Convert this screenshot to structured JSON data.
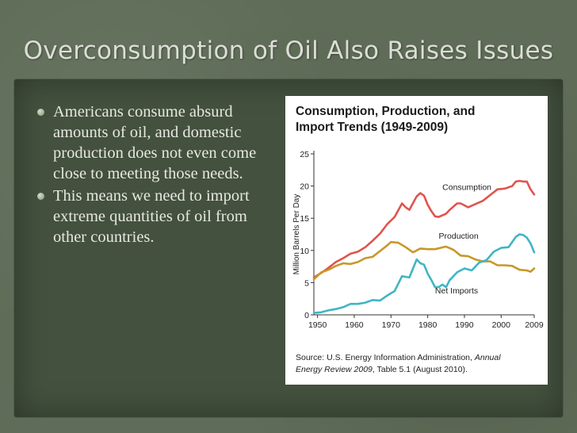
{
  "slide": {
    "title": "Overconsumption of Oil Also Raises Issues",
    "bullets": [
      "Americans consume absurd amounts of oil, and domestic production does not even come close to meeting those needs.",
      "This means we need to import extreme quantities of oil from other countries."
    ]
  },
  "chart_data": {
    "type": "line",
    "title": "Consumption, Production, and Import Trends (1949-2009)",
    "ylabel": "Million Barrels Per Day",
    "xlabel": "",
    "x_ticks": [
      "1950",
      "1960",
      "1970",
      "1980",
      "1990",
      "2000",
      "2009"
    ],
    "y_ticks": [
      "0",
      "5",
      "10",
      "15",
      "20",
      "25"
    ],
    "xlim": [
      1949,
      2009
    ],
    "ylim": [
      0,
      25
    ],
    "grid": false,
    "legend": "inline labels",
    "source": "Source: U.S. Energy Information Administration, Annual Energy Review 2009, Table 5.1 (August 2010).",
    "series": [
      {
        "name": "Consumption",
        "color": "#e0544e",
        "label_year": 1984,
        "label_value": 19.4,
        "points": [
          [
            1949,
            5.8
          ],
          [
            1951,
            6.5
          ],
          [
            1953,
            7.3
          ],
          [
            1955,
            8.2
          ],
          [
            1957,
            8.8
          ],
          [
            1959,
            9.5
          ],
          [
            1961,
            9.8
          ],
          [
            1963,
            10.5
          ],
          [
            1965,
            11.5
          ],
          [
            1967,
            12.6
          ],
          [
            1969,
            14.1
          ],
          [
            1971,
            15.2
          ],
          [
            1973,
            17.3
          ],
          [
            1974,
            16.7
          ],
          [
            1975,
            16.3
          ],
          [
            1977,
            18.4
          ],
          [
            1978,
            18.9
          ],
          [
            1979,
            18.5
          ],
          [
            1980,
            17.1
          ],
          [
            1981,
            16.1
          ],
          [
            1982,
            15.3
          ],
          [
            1983,
            15.2
          ],
          [
            1985,
            15.7
          ],
          [
            1986,
            16.3
          ],
          [
            1988,
            17.3
          ],
          [
            1989,
            17.3
          ],
          [
            1991,
            16.7
          ],
          [
            1993,
            17.2
          ],
          [
            1995,
            17.7
          ],
          [
            1997,
            18.6
          ],
          [
            1999,
            19.5
          ],
          [
            2001,
            19.6
          ],
          [
            2003,
            20.0
          ],
          [
            2004,
            20.7
          ],
          [
            2005,
            20.8
          ],
          [
            2006,
            20.7
          ],
          [
            2007,
            20.7
          ],
          [
            2008,
            19.5
          ],
          [
            2009,
            18.7
          ]
        ]
      },
      {
        "name": "Production",
        "color": "#c8972a",
        "label_year": 1983,
        "label_value": 11.8,
        "points": [
          [
            1949,
            5.5
          ],
          [
            1951,
            6.6
          ],
          [
            1953,
            7.0
          ],
          [
            1955,
            7.6
          ],
          [
            1957,
            8.0
          ],
          [
            1959,
            7.9
          ],
          [
            1961,
            8.2
          ],
          [
            1963,
            8.8
          ],
          [
            1965,
            9.0
          ],
          [
            1967,
            9.9
          ],
          [
            1969,
            10.8
          ],
          [
            1970,
            11.3
          ],
          [
            1972,
            11.2
          ],
          [
            1974,
            10.5
          ],
          [
            1976,
            9.7
          ],
          [
            1978,
            10.3
          ],
          [
            1980,
            10.2
          ],
          [
            1982,
            10.2
          ],
          [
            1985,
            10.6
          ],
          [
            1987,
            10.1
          ],
          [
            1989,
            9.2
          ],
          [
            1991,
            9.1
          ],
          [
            1993,
            8.6
          ],
          [
            1995,
            8.3
          ],
          [
            1997,
            8.3
          ],
          [
            1999,
            7.7
          ],
          [
            2001,
            7.7
          ],
          [
            2003,
            7.6
          ],
          [
            2005,
            7.0
          ],
          [
            2007,
            6.9
          ],
          [
            2008,
            6.7
          ],
          [
            2009,
            7.2
          ]
        ]
      },
      {
        "name": "Net Imports",
        "color": "#40b5c4",
        "label_year": 1982,
        "label_value": 3.3,
        "points": [
          [
            1949,
            0.3
          ],
          [
            1951,
            0.4
          ],
          [
            1953,
            0.7
          ],
          [
            1955,
            0.9
          ],
          [
            1957,
            1.2
          ],
          [
            1959,
            1.7
          ],
          [
            1961,
            1.7
          ],
          [
            1963,
            1.9
          ],
          [
            1965,
            2.3
          ],
          [
            1967,
            2.2
          ],
          [
            1969,
            3.0
          ],
          [
            1971,
            3.7
          ],
          [
            1973,
            6.0
          ],
          [
            1975,
            5.8
          ],
          [
            1977,
            8.6
          ],
          [
            1978,
            8.0
          ],
          [
            1979,
            7.8
          ],
          [
            1980,
            6.4
          ],
          [
            1981,
            5.4
          ],
          [
            1982,
            4.3
          ],
          [
            1983,
            4.3
          ],
          [
            1984,
            4.7
          ],
          [
            1985,
            4.3
          ],
          [
            1986,
            5.4
          ],
          [
            1988,
            6.6
          ],
          [
            1990,
            7.2
          ],
          [
            1992,
            6.9
          ],
          [
            1994,
            8.1
          ],
          [
            1996,
            8.5
          ],
          [
            1998,
            9.8
          ],
          [
            2000,
            10.4
          ],
          [
            2002,
            10.5
          ],
          [
            2004,
            12.1
          ],
          [
            2005,
            12.5
          ],
          [
            2006,
            12.4
          ],
          [
            2007,
            12.0
          ],
          [
            2008,
            11.1
          ],
          [
            2009,
            9.7
          ]
        ]
      }
    ]
  }
}
